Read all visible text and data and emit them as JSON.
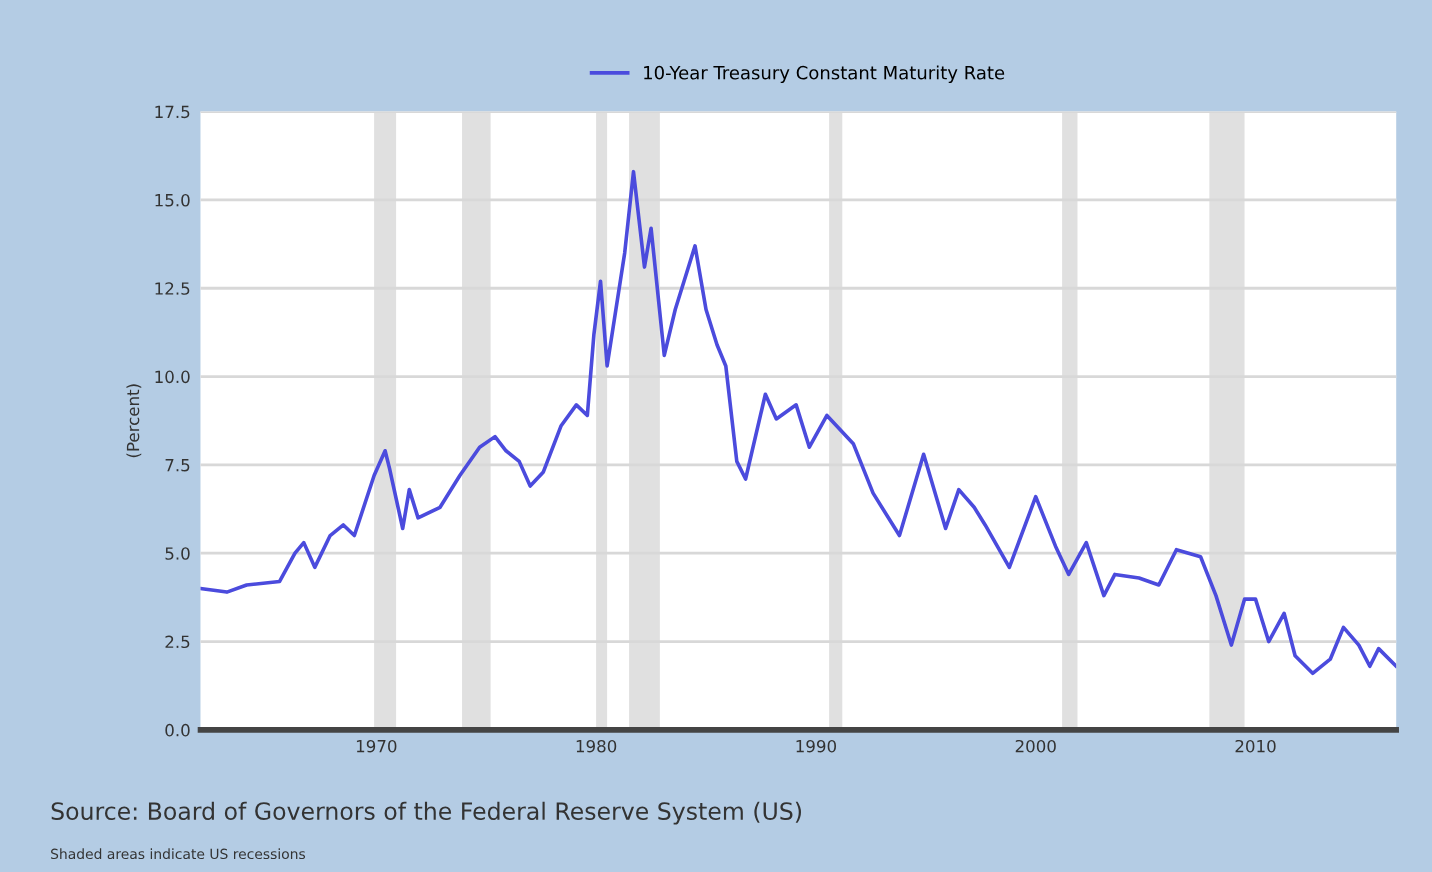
{
  "chart_data": {
    "type": "line",
    "ylabel": "(Percent)",
    "annotations": [
      "Source: Board of Governors of the Federal Reserve System (US)",
      "Shaded areas indicate US recessions"
    ],
    "series": [
      {
        "name": "10-Year Treasury Constant Maturity Rate",
        "color": "#4b4bdd",
        "x": [
          1962.0,
          1963.2,
          1964.1,
          1965.6,
          1966.3,
          1966.7,
          1967.2,
          1967.9,
          1968.5,
          1969.0,
          1969.9,
          1970.4,
          1970.6,
          1971.2,
          1971.5,
          1971.9,
          1972.9,
          1973.8,
          1974.7,
          1975.4,
          1975.9,
          1976.5,
          1977.0,
          1977.6,
          1978.4,
          1979.1,
          1979.6,
          1979.9,
          1980.2,
          1980.5,
          1981.3,
          1981.7,
          1982.2,
          1982.5,
          1983.1,
          1983.6,
          1984.5,
          1985.0,
          1985.5,
          1985.9,
          1986.4,
          1986.8,
          1987.7,
          1988.2,
          1989.1,
          1989.7,
          1990.5,
          1991.7,
          1992.6,
          1993.8,
          1994.9,
          1995.9,
          1996.5,
          1997.2,
          1997.7,
          1998.8,
          2000.0,
          2000.9,
          2001.5,
          2002.3,
          2003.1,
          2003.6,
          2004.7,
          2005.6,
          2006.4,
          2007.5,
          2008.2,
          2008.9,
          2009.5,
          2010.0,
          2010.6,
          2011.3,
          2011.8,
          2012.6,
          2013.4,
          2014.0,
          2014.7,
          2015.2,
          2015.6,
          2016.4
        ],
        "values": [
          4.0,
          3.9,
          4.1,
          4.2,
          5.0,
          5.3,
          4.6,
          5.5,
          5.8,
          5.5,
          7.2,
          7.9,
          7.4,
          5.7,
          6.8,
          6.0,
          6.3,
          7.2,
          8.0,
          8.3,
          7.9,
          7.6,
          6.9,
          7.3,
          8.6,
          9.2,
          8.9,
          11.2,
          12.7,
          10.3,
          13.5,
          15.8,
          13.1,
          14.2,
          10.6,
          11.9,
          13.7,
          11.9,
          10.9,
          10.3,
          7.6,
          7.1,
          9.5,
          8.8,
          9.2,
          8.0,
          8.9,
          8.1,
          6.7,
          5.5,
          7.8,
          5.7,
          6.8,
          6.3,
          5.8,
          4.6,
          6.6,
          5.2,
          4.4,
          5.3,
          3.8,
          4.4,
          4.3,
          4.1,
          5.1,
          4.9,
          3.8,
          2.4,
          3.7,
          3.7,
          2.5,
          3.3,
          2.1,
          1.6,
          2.0,
          2.9,
          2.4,
          1.8,
          2.3,
          1.8
        ]
      }
    ],
    "xlim": [
      1962.0,
      2016.4
    ],
    "xticks": [
      1970,
      1980,
      1990,
      2000,
      2010
    ],
    "ylim": [
      0,
      17.5
    ],
    "yticks": [
      {
        "value": 0,
        "label": "0.0"
      },
      {
        "value": 2.5,
        "label": "2.5"
      },
      {
        "value": 5,
        "label": "5.0"
      },
      {
        "value": 7.5,
        "label": "7.5"
      },
      {
        "value": 10,
        "label": "10.0"
      },
      {
        "value": 12.5,
        "label": "12.5"
      },
      {
        "value": 15,
        "label": "15.0"
      },
      {
        "value": 17.5,
        "label": "17.5"
      }
    ],
    "bands": [
      {
        "axis": "x",
        "from": 1969.9,
        "to": 1970.9,
        "color": "#e0e0e0"
      },
      {
        "axis": "x",
        "from": 1973.9,
        "to": 1975.2,
        "color": "#e0e0e0"
      },
      {
        "axis": "x",
        "from": 1980.0,
        "to": 1980.5,
        "color": "#e0e0e0"
      },
      {
        "axis": "x",
        "from": 1981.5,
        "to": 1982.9,
        "color": "#e0e0e0"
      },
      {
        "axis": "x",
        "from": 1990.6,
        "to": 1991.2,
        "color": "#e0e0e0"
      },
      {
        "axis": "x",
        "from": 2001.2,
        "to": 2001.9,
        "color": "#e0e0e0"
      },
      {
        "axis": "x",
        "from": 2007.9,
        "to": 2009.5,
        "color": "#e0e0e0"
      }
    ],
    "grid": "y",
    "legend": "top",
    "marker": "none",
    "line_style": "solid"
  }
}
